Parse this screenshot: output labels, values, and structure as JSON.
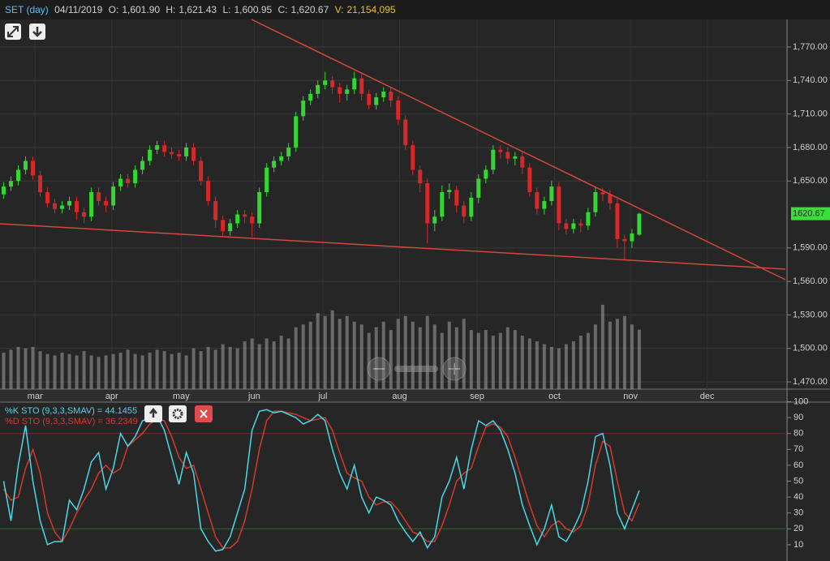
{
  "header": {
    "symbol": "SET (day)",
    "date": "04/11/2019",
    "fields": [
      {
        "label": "O:",
        "value": "1,601.90"
      },
      {
        "label": "H:",
        "value": "1,621.43"
      },
      {
        "label": "L:",
        "value": "1,600.95"
      },
      {
        "label": "C:",
        "value": "1,620.67"
      },
      {
        "label": "V:",
        "value": "21,154,095"
      }
    ]
  },
  "chart_data": [
    {
      "type": "candlestick",
      "up_color": "#33d633",
      "down_color": "#d62828",
      "grid": true,
      "open": [
        1638,
        1645,
        1650,
        1660,
        1668,
        1655,
        1640,
        1630,
        1625,
        1628,
        1632,
        1622,
        1618,
        1640,
        1632,
        1628,
        1645,
        1652,
        1648,
        1660,
        1668,
        1678,
        1682,
        1676,
        1674,
        1672,
        1680,
        1668,
        1650,
        1632,
        1615,
        1605,
        1612,
        1620,
        1618,
        1612,
        1640,
        1662,
        1668,
        1672,
        1680,
        1708,
        1722,
        1728,
        1736,
        1740,
        1734,
        1728,
        1732,
        1742,
        1728,
        1718,
        1725,
        1730,
        1722,
        1705,
        1682,
        1660,
        1648,
        1612,
        1618,
        1640,
        1642,
        1628,
        1618,
        1635,
        1652,
        1660,
        1678,
        1676,
        1670,
        1672,
        1662,
        1640,
        1625,
        1632,
        1645,
        1612,
        1607,
        1612,
        1610,
        1622,
        1640,
        1638,
        1630,
        1598,
        1596,
        1601.9
      ],
      "high": [
        1649,
        1654,
        1664,
        1672,
        1672,
        1659,
        1644,
        1634,
        1632,
        1636,
        1636,
        1626,
        1644,
        1644,
        1636,
        1649,
        1656,
        1656,
        1664,
        1672,
        1682,
        1686,
        1686,
        1680,
        1678,
        1684,
        1684,
        1672,
        1654,
        1636,
        1619,
        1616,
        1624,
        1624,
        1622,
        1644,
        1666,
        1672,
        1676,
        1684,
        1712,
        1726,
        1732,
        1740,
        1748,
        1744,
        1738,
        1736,
        1748,
        1746,
        1732,
        1729,
        1734,
        1734,
        1726,
        1709,
        1686,
        1664,
        1652,
        1624,
        1646,
        1648,
        1646,
        1632,
        1640,
        1656,
        1664,
        1682,
        1682,
        1680,
        1676,
        1676,
        1666,
        1644,
        1636,
        1650,
        1649,
        1616,
        1616,
        1616,
        1626,
        1644,
        1644,
        1642,
        1634,
        1602,
        1607,
        1621.43
      ],
      "low": [
        1634,
        1641,
        1646,
        1656,
        1651,
        1636,
        1626,
        1621,
        1621,
        1624,
        1615,
        1612,
        1614,
        1628,
        1622,
        1624,
        1641,
        1644,
        1644,
        1656,
        1664,
        1674,
        1672,
        1670,
        1668,
        1668,
        1664,
        1646,
        1628,
        1608,
        1600,
        1601,
        1608,
        1612,
        1600,
        1608,
        1636,
        1658,
        1664,
        1668,
        1676,
        1704,
        1718,
        1724,
        1732,
        1728,
        1720,
        1722,
        1728,
        1722,
        1714,
        1714,
        1721,
        1716,
        1700,
        1678,
        1655,
        1640,
        1594,
        1605,
        1614,
        1634,
        1622,
        1612,
        1614,
        1630,
        1648,
        1656,
        1670,
        1665,
        1664,
        1656,
        1636,
        1620,
        1620,
        1628,
        1606,
        1602,
        1603,
        1604,
        1606,
        1618,
        1632,
        1624,
        1590,
        1580,
        1590,
        1600.95
      ],
      "close": [
        1645,
        1650,
        1660,
        1668,
        1655,
        1640,
        1630,
        1625,
        1628,
        1632,
        1622,
        1618,
        1640,
        1632,
        1628,
        1645,
        1652,
        1648,
        1660,
        1668,
        1678,
        1682,
        1676,
        1674,
        1672,
        1680,
        1668,
        1650,
        1632,
        1615,
        1605,
        1612,
        1620,
        1618,
        1612,
        1640,
        1662,
        1668,
        1672,
        1680,
        1708,
        1722,
        1728,
        1736,
        1740,
        1734,
        1728,
        1732,
        1742,
        1728,
        1718,
        1725,
        1730,
        1722,
        1705,
        1682,
        1660,
        1648,
        1612,
        1618,
        1640,
        1642,
        1628,
        1618,
        1635,
        1652,
        1660,
        1678,
        1676,
        1670,
        1672,
        1662,
        1640,
        1625,
        1632,
        1645,
        1612,
        1607,
        1612,
        1610,
        1622,
        1640,
        1638,
        1630,
        1598,
        1596,
        1603,
        1620.67
      ],
      "xlim": [
        -0.5,
        107
      ],
      "xticks": [
        {
          "value": 4.3,
          "label": "mar"
        },
        {
          "value": 14.8,
          "label": "apr"
        },
        {
          "value": 24.3,
          "label": "may"
        },
        {
          "value": 34.3,
          "label": "jun"
        },
        {
          "value": 43.7,
          "label": "jul"
        },
        {
          "value": 54.2,
          "label": "aug"
        },
        {
          "value": 64.8,
          "label": "sep"
        },
        {
          "value": 75.4,
          "label": "oct"
        },
        {
          "value": 85.8,
          "label": "nov"
        },
        {
          "value": 96.3,
          "label": "dec"
        }
      ],
      "ylim": [
        1463.5,
        1794.7
      ],
      "yticks": [
        {
          "value": 1770,
          "label": "1,770.00"
        },
        {
          "value": 1740,
          "label": "1,740.00"
        },
        {
          "value": 1710,
          "label": "1,710.00"
        },
        {
          "value": 1680,
          "label": "1,680.00"
        },
        {
          "value": 1650,
          "label": "1,650.00"
        },
        {
          "value": 1590,
          "label": "1,590.00"
        },
        {
          "value": 1560,
          "label": "1,560.00"
        },
        {
          "value": 1530,
          "label": "1,530.00"
        },
        {
          "value": 1500,
          "label": "1,500.00"
        },
        {
          "value": 1470,
          "label": "1,470.00"
        }
      ],
      "last_price": {
        "value": 1620.67,
        "label": "1620.67",
        "color": "#3ddc3d"
      }
    },
    {
      "type": "bar",
      "color": "#bdbdbd",
      "values": [
        13000000,
        14000000,
        15000000,
        14500000,
        15000000,
        13500000,
        12500000,
        12000000,
        13000000,
        12500000,
        12000000,
        13500000,
        12000000,
        11500000,
        12000000,
        12500000,
        13000000,
        14000000,
        12500000,
        12000000,
        13000000,
        14000000,
        13500000,
        12500000,
        13000000,
        12000000,
        14500000,
        13500000,
        15000000,
        14000000,
        16000000,
        15000000,
        14500000,
        17000000,
        18000000,
        16000000,
        18000000,
        17000000,
        19000000,
        18000000,
        22000000,
        23000000,
        24000000,
        27000000,
        26000000,
        28000000,
        25000000,
        26000000,
        24000000,
        23000000,
        20000000,
        22000000,
        24000000,
        21000000,
        25000000,
        26000000,
        24000000,
        22000000,
        26000000,
        23000000,
        20000000,
        24000000,
        22000000,
        25000000,
        21000000,
        20000000,
        21000000,
        19000000,
        20000000,
        22000000,
        21000000,
        19000000,
        18000000,
        17000000,
        16000000,
        15000000,
        14500000,
        16000000,
        17000000,
        19000000,
        20000000,
        23000000,
        30000000,
        24000000,
        25000000,
        26000000,
        23000000,
        21154095
      ],
      "xlim": [
        -0.5,
        107
      ],
      "ylim": [
        0,
        29400000
      ]
    },
    {
      "type": "line",
      "series": [
        {
          "name": "%K STO (9,3,3,SMAV) = 44.1455",
          "color": "#4dd6e6",
          "values": [
            50,
            25,
            60,
            85,
            50,
            25,
            10,
            12,
            12,
            38,
            32,
            45,
            62,
            68,
            45,
            58,
            80,
            72,
            78,
            88,
            90,
            91,
            82,
            65,
            48,
            68,
            55,
            20,
            12,
            6,
            7,
            15,
            30,
            45,
            82,
            94,
            95,
            93,
            94,
            92,
            90,
            86,
            88,
            92,
            88,
            70,
            55,
            45,
            60,
            40,
            30,
            40,
            38,
            35,
            25,
            18,
            12,
            18,
            8,
            15,
            40,
            50,
            65,
            45,
            70,
            88,
            85,
            88,
            82,
            70,
            55,
            35,
            22,
            10,
            20,
            35,
            15,
            12,
            20,
            30,
            50,
            78,
            80,
            60,
            30,
            20,
            32,
            44.1455
          ]
        },
        {
          "name": "%D STO (9,3,3,SMAV) = 36.2349",
          "color": "#d23a2e",
          "values": [
            45,
            38,
            40,
            58,
            70,
            55,
            30,
            18,
            12,
            20,
            30,
            38,
            45,
            55,
            60,
            55,
            58,
            72,
            76,
            80,
            86,
            89,
            88,
            78,
            65,
            58,
            60,
            45,
            30,
            15,
            8,
            8,
            12,
            25,
            45,
            70,
            88,
            94,
            94,
            93,
            92,
            90,
            88,
            89,
            90,
            82,
            68,
            55,
            52,
            50,
            40,
            35,
            37,
            37,
            32,
            25,
            18,
            16,
            12,
            12,
            22,
            35,
            50,
            55,
            58,
            72,
            84,
            86,
            84,
            78,
            65,
            50,
            35,
            22,
            15,
            22,
            25,
            20,
            18,
            22,
            35,
            60,
            75,
            72,
            50,
            30,
            25,
            36.2349
          ]
        }
      ],
      "levels": [
        {
          "value": 80,
          "color": "#7a2a26"
        },
        {
          "value": 20,
          "color": "#2a6a2a"
        }
      ],
      "xlim": [
        -0.5,
        107
      ],
      "ylim": [
        0,
        100
      ],
      "yticks": [
        100,
        90,
        80,
        70,
        60,
        50,
        40,
        30,
        20,
        10
      ]
    }
  ]
}
